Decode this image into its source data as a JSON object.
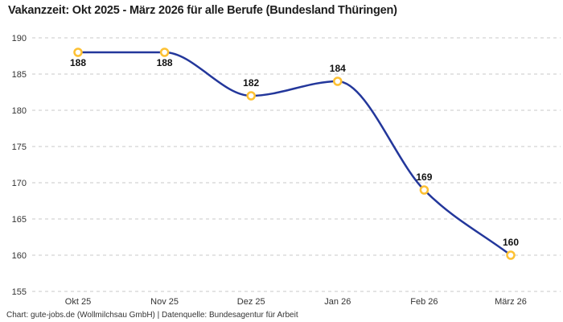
{
  "chart_data": {
    "type": "line",
    "title": "Vakanzzeit: Okt 2025 - März 2026 für alle Berufe (Bundesland Thüringen)",
    "categories": [
      "Okt 25",
      "Nov 25",
      "Dez 25",
      "Jan 26",
      "Feb 26",
      "März 26"
    ],
    "values": [
      188,
      188,
      182,
      184,
      169,
      160
    ],
    "xlabel": "",
    "ylabel": "",
    "ylim": [
      155,
      190
    ],
    "yticks": [
      190,
      185,
      180,
      175,
      170,
      165,
      160,
      155
    ],
    "grid": "horizontal-dashed",
    "legend": "none",
    "line_color": "#23379b",
    "marker_fill": "#ffffff",
    "marker_stroke": "#fdc133",
    "grid_color": "#c9c9c9",
    "label_positions": [
      "below",
      "below",
      "above",
      "above",
      "above",
      "above"
    ]
  },
  "footer": {
    "text": "Chart: gute-jobs.de (Wollmilchsau GmbH) | Datenquelle: Bundesagentur für Arbeit"
  }
}
